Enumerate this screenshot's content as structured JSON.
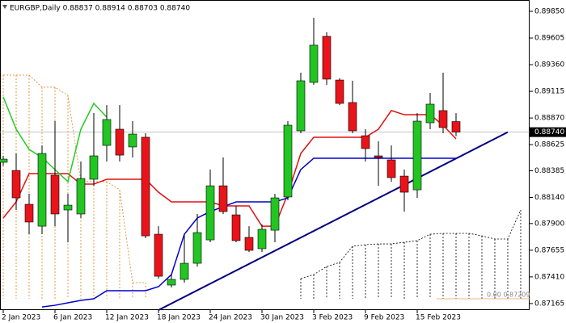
{
  "chart_data": {
    "type": "candlestick",
    "title": "EURGBP,Daily  0.88837 0.88914 0.88703 0.88740",
    "categories": [
      "2 Jan 2023",
      null,
      null,
      null,
      "6 Jan 2023",
      null,
      null,
      null,
      "12 Jan 2023",
      null,
      null,
      null,
      "18 Jan 2023",
      null,
      null,
      null,
      "24 Jan 2023",
      null,
      null,
      null,
      "30 Jan 2023",
      null,
      null,
      null,
      "3 Feb 2023",
      null,
      null,
      null,
      "9 Feb 2023",
      null,
      null,
      null,
      "15 Feb 2023",
      null,
      null,
      null,
      null,
      null,
      null,
      null,
      null
    ],
    "open": [
      0.88463,
      0.88388,
      0.88077,
      0.87876,
      0.88344,
      0.88025,
      0.87988,
      0.88307,
      0.88618,
      0.88767,
      0.88604,
      0.88693,
      0.87802,
      0.87335,
      0.87387,
      0.87535,
      0.8775,
      0.88247,
      0.8798,
      0.87773,
      0.87669,
      0.87839,
      0.88144,
      0.88752,
      0.89197,
      0.8962,
      0.89219,
      0.89012,
      0.88707,
      0.88522,
      0.88485,
      0.88336,
      0.8821,
      0.88826,
      0.88938,
      0.88837,
      null,
      null,
      null,
      null,
      null
    ],
    "high": [
      0.88522,
      0.88544,
      0.88173,
      0.88618,
      0.88841,
      0.88173,
      0.8847,
      0.88915,
      0.88989,
      0.88989,
      0.88841,
      0.8873,
      0.87876,
      0.87431,
      0.87802,
      0.87988,
      0.88396,
      0.88507,
      0.88062,
      0.87876,
      0.87891,
      0.88173,
      0.88841,
      0.89286,
      0.89791,
      0.89657,
      0.89234,
      0.89212,
      0.88767,
      0.88656,
      0.88618,
      0.88396,
      0.88915,
      0.89101,
      0.89286,
      0.88914,
      null,
      null,
      null,
      null,
      null
    ],
    "low": [
      0.88433,
      0.88025,
      0.87802,
      0.87802,
      0.87876,
      0.87728,
      0.87951,
      0.88247,
      0.8847,
      0.8847,
      0.88507,
      0.87765,
      0.87394,
      0.87313,
      0.87357,
      0.87505,
      0.87728,
      0.87988,
      0.87728,
      0.87639,
      0.87639,
      0.87728,
      0.88114,
      0.8873,
      0.89175,
      0.89175,
      0.88989,
      0.8873,
      0.8847,
      0.88247,
      0.88285,
      0.8801,
      0.88136,
      0.88767,
      0.8873,
      0.88703,
      null,
      null,
      null,
      null,
      null
    ],
    "close": [
      0.88492,
      0.88136,
      0.87914,
      0.88544,
      0.87988,
      0.88069,
      0.88314,
      0.88522,
      0.88856,
      0.88529,
      0.88722,
      0.87787,
      0.87416,
      0.87387,
      0.87535,
      0.87817,
      0.88247,
      0.8801,
      0.87743,
      0.87654,
      0.87847,
      0.88136,
      0.88804,
      0.89212,
      0.89539,
      0.89227,
      0.89004,
      0.88752,
      0.88589,
      0.88507,
      0.88322,
      0.88188,
      0.88841,
      0.88997,
      0.88782,
      0.8874,
      null,
      null,
      null,
      null,
      null
    ],
    "up_color": "#22c522",
    "down_color": "#e8141a",
    "series": [
      {
        "color": "#e01010",
        "values": [
          0.87951,
          0.88099,
          0.88359,
          0.88359,
          0.88359,
          0.88359,
          0.88262,
          0.88262,
          0.88307,
          0.88307,
          0.88307,
          0.88307,
          0.88188,
          0.88099,
          0.88099,
          0.88099,
          0.88099,
          0.88062,
          0.88062,
          0.88062,
          0.87876,
          0.87876,
          0.88173,
          0.88544,
          0.88693,
          0.88693,
          0.88693,
          0.88693,
          0.88693,
          0.88767,
          0.88938,
          0.889,
          0.889,
          0.889,
          0.88804,
          0.88678,
          null,
          null,
          null,
          null,
          null
        ]
      },
      {
        "color": "#0000cc",
        "values": [
          null,
          null,
          null,
          0.87134,
          0.87149,
          0.87172,
          0.87194,
          0.87209,
          0.87283,
          0.87283,
          0.87283,
          0.87283,
          0.8732,
          0.87431,
          0.87802,
          0.87951,
          0.8801,
          0.88055,
          0.88099,
          0.88099,
          0.88099,
          0.88099,
          0.88136,
          0.88396,
          0.885,
          0.885,
          0.885,
          0.885,
          0.885,
          0.885,
          0.885,
          0.885,
          0.885,
          0.885,
          0.885,
          0.885,
          null,
          null,
          null,
          null,
          null
        ]
      },
      {
        "color": "#22cc22",
        "values": [
          0.89064,
          0.88767,
          0.88581,
          0.88507,
          0.88396,
          0.88285,
          0.88767,
          0.89004,
          0.88878,
          null,
          null,
          null,
          null,
          null,
          null,
          null,
          null,
          null,
          null,
          null,
          null,
          null,
          null,
          null,
          null,
          null,
          null,
          null,
          null,
          null,
          null,
          null,
          null,
          null,
          null,
          null,
          null,
          null,
          null,
          null,
          null
        ]
      }
    ],
    "cloud": [
      {
        "color": "#e0801a",
        "lower": 0.87209,
        "upper": [
          0.89264,
          0.89264,
          0.89264,
          0.89153,
          0.89153,
          0.89078,
          0.88285,
          0.88285,
          0.88285,
          0.8821,
          0.87357,
          0.87357,
          null,
          null,
          null,
          null,
          null,
          null,
          null,
          null,
          null,
          null,
          null,
          null,
          null,
          null,
          null,
          null,
          null,
          null,
          null,
          null,
          null,
          null,
          null,
          null,
          null,
          null,
          null,
          null,
          null
        ]
      },
      {
        "color": "#000000",
        "lower": 0.87209,
        "upper": [
          null,
          null,
          null,
          null,
          null,
          null,
          null,
          null,
          null,
          null,
          null,
          null,
          null,
          null,
          null,
          null,
          null,
          null,
          null,
          null,
          null,
          null,
          null,
          0.87394,
          0.87431,
          0.87505,
          0.87543,
          0.87691,
          0.87706,
          0.87713,
          0.87713,
          0.87728,
          0.87743,
          0.87802,
          0.8781,
          0.8781,
          0.8781,
          0.87787,
          0.87758,
          0.87758,
          0.88025
        ]
      }
    ],
    "trendline": {
      "color": "#000080",
      "start": [
        12,
        0.87105
      ],
      "end": [
        39,
        0.8874
      ]
    },
    "fib_label": "0.00 0.87209",
    "fib_level": 0.87209,
    "last_price": {
      "value": 0.8874,
      "label": "0.88740"
    },
    "ylim": [
      0.87105,
      0.89954
    ],
    "yticks": [
      {
        "value": 0.8985,
        "label": "0.89850"
      },
      0.89605,
      {
        "value": 0.8936,
        "label": "0.89360"
      },
      0.89115,
      {
        "value": 0.8887,
        "label": "0.88870"
      },
      0.88625,
      0.88385,
      {
        "value": 0.8814,
        "label": "0.88140"
      },
      {
        "value": 0.879,
        "label": "0.87900"
      },
      0.87655,
      {
        "value": 0.8741,
        "label": "0.87410"
      },
      0.87165
    ]
  }
}
